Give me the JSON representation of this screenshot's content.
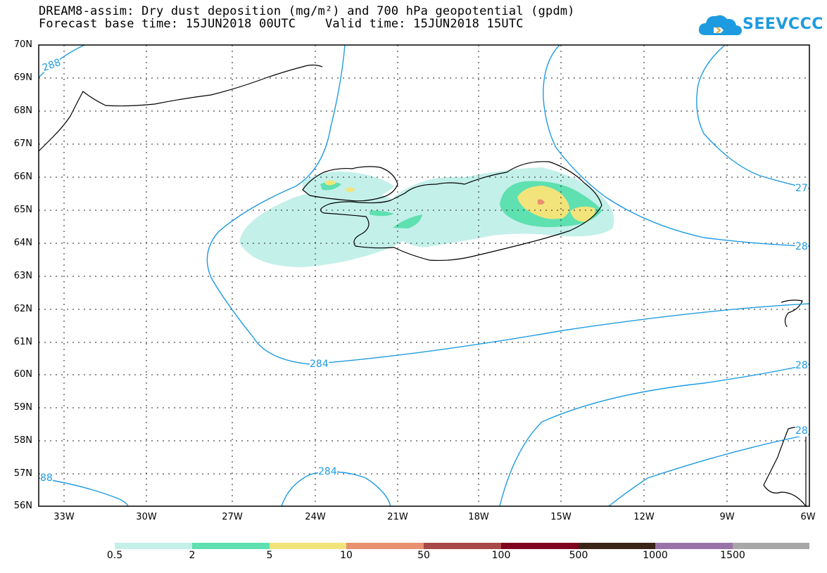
{
  "title_line1": "DREAM8-assim: Dry dust deposition (mg/m²) and 700 hPa geopotential (gpdm)",
  "title_line2": "Forecast base time: 15JUN2018 00UTC    Valid time: 15JUN2018 15UTC",
  "logo_text": "SEEVCCC",
  "lat_labels": [
    "70N",
    "69N",
    "68N",
    "67N",
    "66N",
    "65N",
    "64N",
    "63N",
    "62N",
    "61N",
    "60N",
    "59N",
    "58N",
    "57N",
    "56N"
  ],
  "lon_labels": [
    "33W",
    "30W",
    "27W",
    "24W",
    "21W",
    "18W",
    "15W",
    "12W",
    "9W",
    "6W"
  ],
  "contour_labels": [
    "288",
    "284",
    "284",
    "27",
    "28",
    "28",
    "28",
    "88"
  ],
  "colorbar": {
    "labels": [
      "0.5",
      "2",
      "5",
      "10",
      "50",
      "100",
      "500",
      "1000",
      "1500"
    ],
    "colors": [
      "#c4f0ea",
      "#5ee0b0",
      "#f2e47a",
      "#e89070",
      "#a84848",
      "#800020",
      "#3a2418",
      "#9a74a8",
      "#a8a8a8"
    ]
  },
  "colors": {
    "contour": "#1e9be0",
    "accent": "#1e9be0"
  },
  "icons": {
    "logo": "cloud-logo-icon"
  }
}
